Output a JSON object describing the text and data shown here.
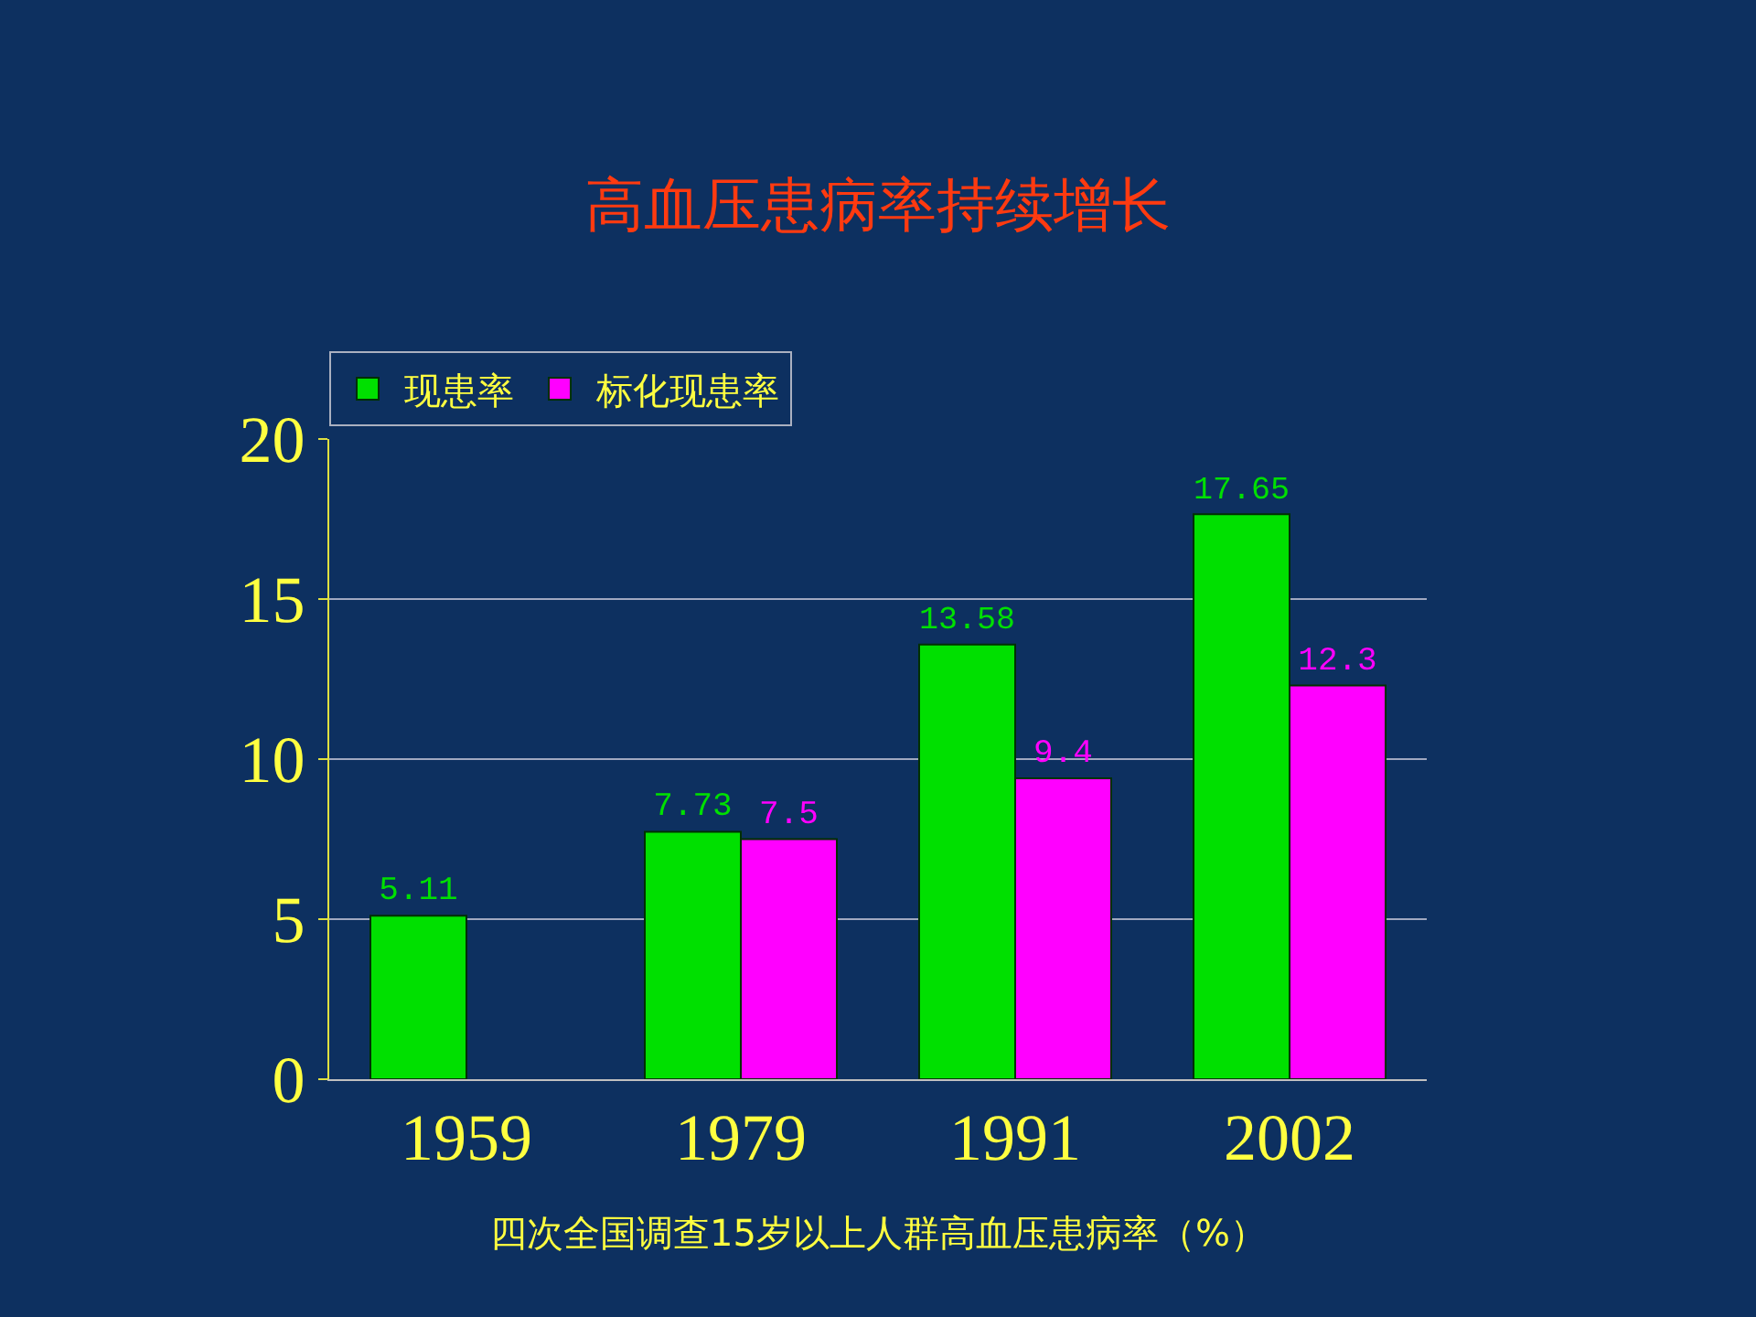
{
  "chart_data": {
    "type": "bar",
    "title": "高血压患病率持续增长",
    "categories": [
      "1959",
      "1979",
      "1991",
      "2002"
    ],
    "series": [
      {
        "name": "现患率",
        "color": "#00e000",
        "values": [
          5.11,
          7.73,
          13.58,
          17.65
        ]
      },
      {
        "name": "标化现患率",
        "color": "#ff00ff",
        "values": [
          null,
          7.5,
          9.4,
          12.3
        ]
      }
    ],
    "ylim": [
      0,
      20
    ],
    "yticks": [
      0,
      5,
      10,
      15,
      20
    ],
    "grid": "y",
    "legend": "top left",
    "data_labels": true,
    "annotations": [
      "四次全国调查15岁以上人群高血压患病率（%）"
    ]
  }
}
